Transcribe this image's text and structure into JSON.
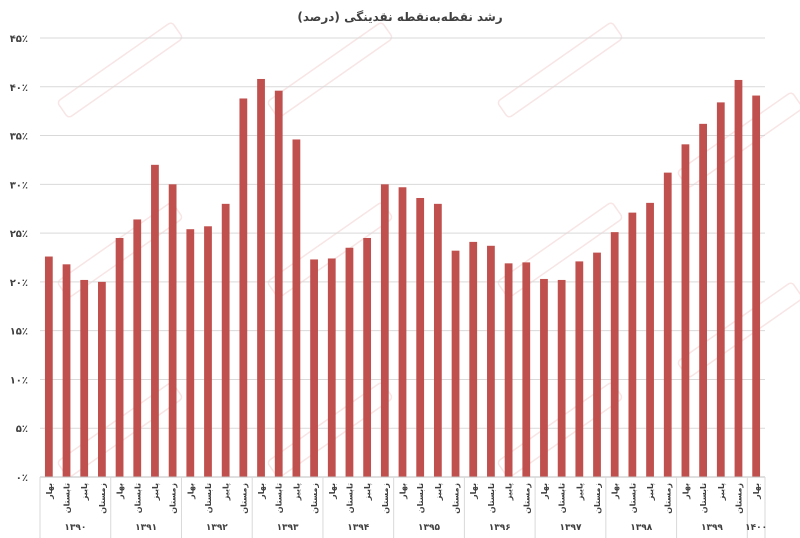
{
  "chart_data": {
    "type": "bar",
    "title": "رشد نقطه‌به‌نقطه نقدینگی (درصد)",
    "xlabel": "",
    "ylabel": "",
    "ylim": [
      0,
      45
    ],
    "yticks": [
      "۰٪",
      "۵٪",
      "۱۰٪",
      "۱۵٪",
      "۲۰٪",
      "۲۵٪",
      "۳۰٪",
      "۳۵٪",
      "۴۰٪",
      "۴۵٪"
    ],
    "bar_color": "#c0504d",
    "grid": true,
    "legend": "none",
    "categories": [
      "بهار",
      "تابستان",
      "پاییز",
      "زمستان",
      "بهار",
      "تابستان",
      "پاییز",
      "زمستان",
      "بهار",
      "تابستان",
      "پاییز",
      "زمستان",
      "بهار",
      "تابستان",
      "پاییز",
      "زمستان",
      "بهار",
      "تابستان",
      "پاییز",
      "زمستان",
      "بهار",
      "تابستان",
      "پاییز",
      "زمستان",
      "بهار",
      "تابستان",
      "پاییز",
      "زمستان",
      "بهار",
      "تابستان",
      "پاییز",
      "زمستان",
      "بهار",
      "تابستان",
      "پاییز",
      "زمستان",
      "بهار",
      "تابستان",
      "پاییز",
      "زمستان",
      "بهار"
    ],
    "groups": [
      {
        "label": "۱۳۹۰",
        "count": 4
      },
      {
        "label": "۱۳۹۱",
        "count": 4
      },
      {
        "label": "۱۳۹۲",
        "count": 4
      },
      {
        "label": "۱۳۹۳",
        "count": 4
      },
      {
        "label": "۱۳۹۴",
        "count": 4
      },
      {
        "label": "۱۳۹۵",
        "count": 4
      },
      {
        "label": "۱۳۹۶",
        "count": 4
      },
      {
        "label": "۱۳۹۷",
        "count": 4
      },
      {
        "label": "۱۳۹۸",
        "count": 4
      },
      {
        "label": "۱۳۹۹",
        "count": 4
      },
      {
        "label": "۱۴۰۰",
        "count": 1
      }
    ],
    "values": [
      22.6,
      21.8,
      20.2,
      20.0,
      24.5,
      26.4,
      32.0,
      30.0,
      25.4,
      25.7,
      28.0,
      38.8,
      40.8,
      39.6,
      34.6,
      22.3,
      22.4,
      23.5,
      24.5,
      30.0,
      29.7,
      28.6,
      28.0,
      23.2,
      24.1,
      23.7,
      21.9,
      22.0,
      20.3,
      20.2,
      22.1,
      23.0,
      25.1,
      27.1,
      28.1,
      31.2,
      34.1,
      36.2,
      38.4,
      40.7,
      39.1
    ]
  }
}
